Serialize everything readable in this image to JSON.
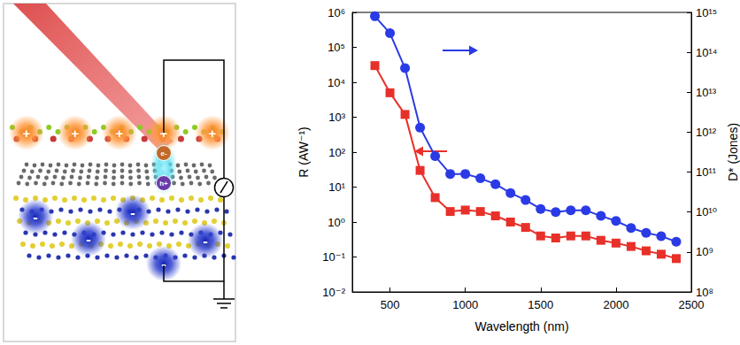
{
  "chart_data": {
    "type": "line",
    "x_label": "Wavelength (nm)",
    "y_label": "R (AW⁻¹)",
    "y2_label": "D* (Jones)",
    "log": "y",
    "grid": false,
    "x": [
      400,
      500,
      600,
      700,
      800,
      900,
      1000,
      1100,
      1200,
      1300,
      1400,
      1500,
      1600,
      1700,
      1800,
      1900,
      2000,
      2100,
      2200,
      2300,
      2400
    ],
    "series": [
      {
        "color": "#e8302a",
        "marker": "square",
        "values": [
          30000,
          5000,
          1200,
          30,
          5,
          2,
          2.2,
          2,
          1.5,
          1,
          0.7,
          0.4,
          0.35,
          0.4,
          0.4,
          0.3,
          0.25,
          0.2,
          0.15,
          0.12,
          0.09
        ]
      },
      {
        "color": "#2a3be6",
        "marker": "circle",
        "axis": "y2",
        "values": [
          800000000000000,
          300000000000000,
          40000000000000,
          1300000000000,
          250000000000,
          90000000000,
          90000000000,
          70000000000,
          50000000000,
          30000000000,
          20000000000,
          12000000000,
          10000000000,
          11000000000,
          11000000000,
          8000000000,
          6000000000,
          4000000000,
          3000000000,
          2500000000,
          1800000000
        ]
      }
    ],
    "xlim": [
      250,
      2500
    ],
    "xticks": [
      500,
      1000,
      1500,
      2000,
      2500
    ],
    "ylim": [
      0.01,
      1000000
    ],
    "yticks": [
      {
        "value": 0.01,
        "label": "10⁻²"
      },
      {
        "value": 0.1,
        "label": "10⁻¹"
      },
      {
        "value": 1,
        "label": "10⁰"
      },
      {
        "value": 10,
        "label": "10¹"
      },
      {
        "value": 100,
        "label": "10²"
      },
      {
        "value": 1000,
        "label": "10³"
      },
      {
        "value": 10000,
        "label": "10⁴"
      },
      {
        "value": 100000,
        "label": "10⁵"
      },
      {
        "value": 1000000,
        "label": "10⁶"
      }
    ],
    "y2lim": [
      100000000,
      1000000000000000
    ],
    "y2ticks": [
      {
        "value": 100000000,
        "label": "10⁸"
      },
      {
        "value": 1000000000,
        "label": "10⁹"
      },
      {
        "value": 10000000000,
        "label": "10¹⁰"
      },
      {
        "value": 100000000000,
        "label": "10¹¹"
      },
      {
        "value": 1000000000000,
        "label": "10¹²"
      },
      {
        "value": 10000000000000,
        "label": "10¹³"
      },
      {
        "value": 100000000000000,
        "label": "10¹⁴"
      },
      {
        "value": 1000000000000000,
        "label": "10¹⁵"
      }
    ]
  },
  "diagram": {
    "top_charges": [
      "+",
      "+",
      "+",
      "+",
      "+"
    ],
    "bottom_charges": [
      "-",
      "-",
      "-",
      "-",
      "-"
    ],
    "carriers": [
      "e-",
      "h+"
    ]
  }
}
